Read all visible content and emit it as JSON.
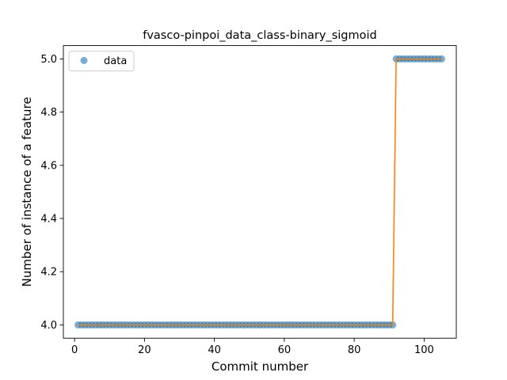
{
  "chart_data": {
    "type": "scatter",
    "title": "fvasco-pinpoi_data_class-binary_sigmoid",
    "xlabel": "Commit number",
    "ylabel": "Number of instance of a feature",
    "xlim": [
      -3.2,
      109.2
    ],
    "ylim": [
      3.95,
      5.05
    ],
    "xticks": [
      0,
      20,
      40,
      60,
      80,
      100
    ],
    "yticks": [
      4.0,
      4.2,
      4.4,
      4.6,
      4.8,
      5.0
    ],
    "xtick_labels": [
      "0",
      "20",
      "40",
      "60",
      "80",
      "100"
    ],
    "ytick_labels": [
      "4.0",
      "4.2",
      "4.4",
      "4.6",
      "4.8",
      "5.0"
    ],
    "grid": false,
    "legend": {
      "position": "top-left",
      "entries": [
        "data"
      ]
    },
    "series": [
      {
        "name": "data",
        "style": "markers",
        "color": "#1f77b4",
        "segments": [
          {
            "x_start": 1,
            "x_end": 91,
            "y": 4.0
          },
          {
            "x_start": 92,
            "x_end": 105,
            "y": 5.0
          }
        ]
      },
      {
        "style": "line",
        "color": "#ff7f0e",
        "x": [
          1,
          91,
          92,
          105
        ],
        "y": [
          4.0,
          4.0,
          5.0,
          5.0
        ]
      }
    ]
  }
}
